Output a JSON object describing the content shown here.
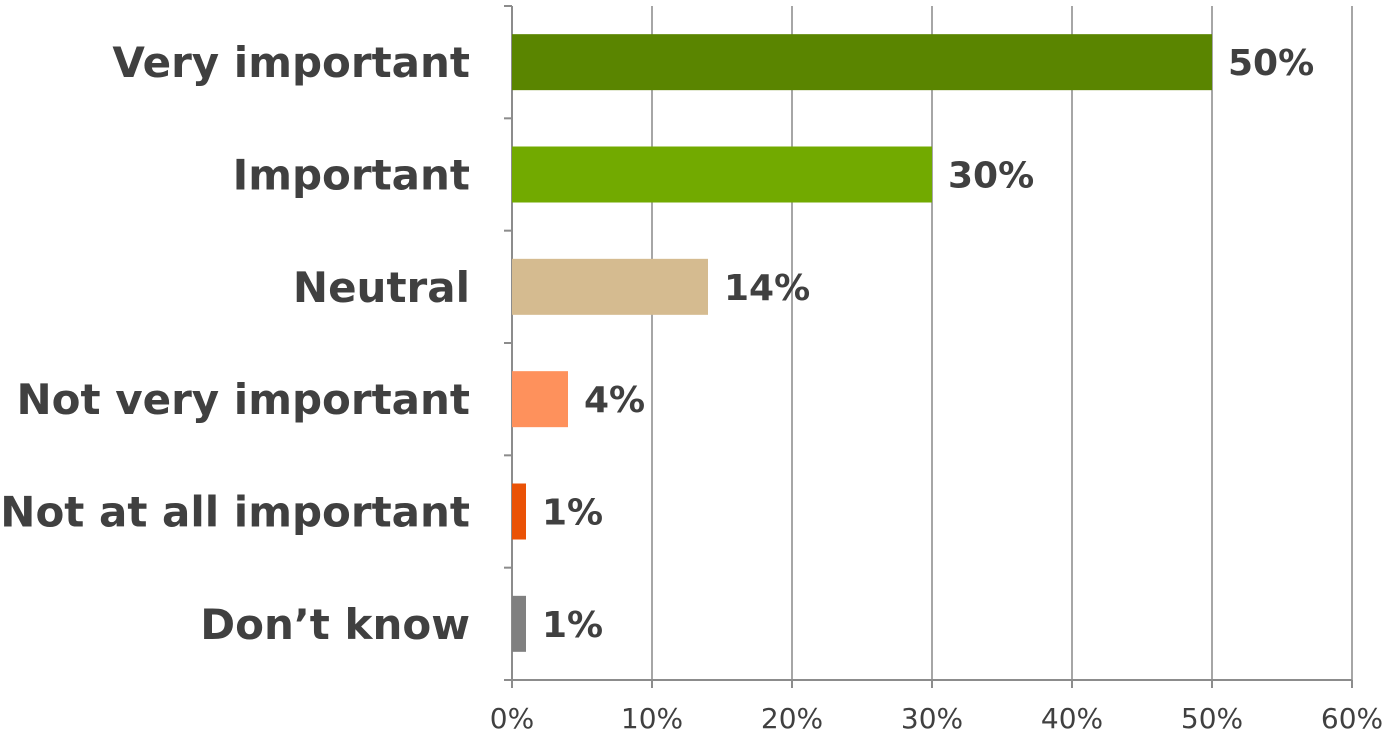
{
  "chart_data": {
    "type": "bar",
    "orientation": "horizontal",
    "title": "",
    "xlabel": "",
    "ylabel": "",
    "categories": [
      "Very important",
      "Important",
      "Neutral",
      "Not very important",
      "Not at all important",
      "Don’t know"
    ],
    "values": [
      50,
      30,
      14,
      4,
      1,
      1
    ],
    "data_labels": [
      "50%",
      "30%",
      "14%",
      "4%",
      "1%",
      "1%"
    ],
    "colors": [
      "#5a8500",
      "#72aa00",
      "#d5bb90",
      "#fe915c",
      "#ea5206",
      "#808080"
    ],
    "xlim": [
      0,
      60
    ],
    "x_ticks": [
      0,
      10,
      20,
      30,
      40,
      50,
      60
    ],
    "x_tick_labels": [
      "0%",
      "10%",
      "20%",
      "30%",
      "40%",
      "50%",
      "60%"
    ],
    "grid": true,
    "legend": "none"
  }
}
